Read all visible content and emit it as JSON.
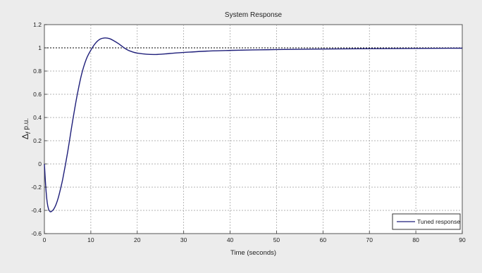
{
  "chart_data": {
    "type": "line",
    "title": "System Response",
    "xlabel": "Time (seconds)",
    "ylabel": "Δf p.u.",
    "ylabel_parts": {
      "delta": "Δ",
      "sub": "f",
      "unit": "p.u."
    },
    "xlim": [
      0,
      90
    ],
    "ylim": [
      -0.6,
      1.2
    ],
    "xticks": [
      0,
      10,
      20,
      30,
      40,
      50,
      60,
      70,
      80,
      90
    ],
    "yticks": [
      -0.6,
      -0.4,
      -0.2,
      0,
      0.2,
      0.4,
      0.6,
      0.8,
      1,
      1.2
    ],
    "grid": true,
    "legend_position": "bottom-right",
    "series": [
      {
        "name": "Tuned response",
        "color": "#1f1f7a",
        "x": [
          0,
          0.3,
          0.6,
          0.9,
          1.2,
          1.5,
          2.0,
          2.5,
          3.0,
          3.5,
          4.0,
          5.0,
          6.0,
          7.0,
          8.0,
          9.0,
          10.0,
          11.0,
          12.0,
          13.0,
          14.0,
          15.0,
          16.0,
          17.0,
          18.0,
          19.0,
          20.0,
          22.0,
          24.0,
          26.0,
          28.0,
          30.0,
          35.0,
          40.0,
          45.0,
          50.0,
          60.0,
          70.0,
          80.0,
          90.0
        ],
        "y": [
          0,
          -0.2,
          -0.33,
          -0.39,
          -0.41,
          -0.41,
          -0.39,
          -0.35,
          -0.29,
          -0.21,
          -0.12,
          0.1,
          0.35,
          0.58,
          0.77,
          0.9,
          0.98,
          1.04,
          1.075,
          1.085,
          1.08,
          1.06,
          1.035,
          1.005,
          0.98,
          0.965,
          0.955,
          0.945,
          0.943,
          0.948,
          0.955,
          0.96,
          0.972,
          0.978,
          0.982,
          0.985,
          0.99,
          0.993,
          0.995,
          0.997
        ]
      }
    ],
    "reference_lines": [
      {
        "axis": "y",
        "value": 1,
        "style": "dotted"
      }
    ]
  }
}
